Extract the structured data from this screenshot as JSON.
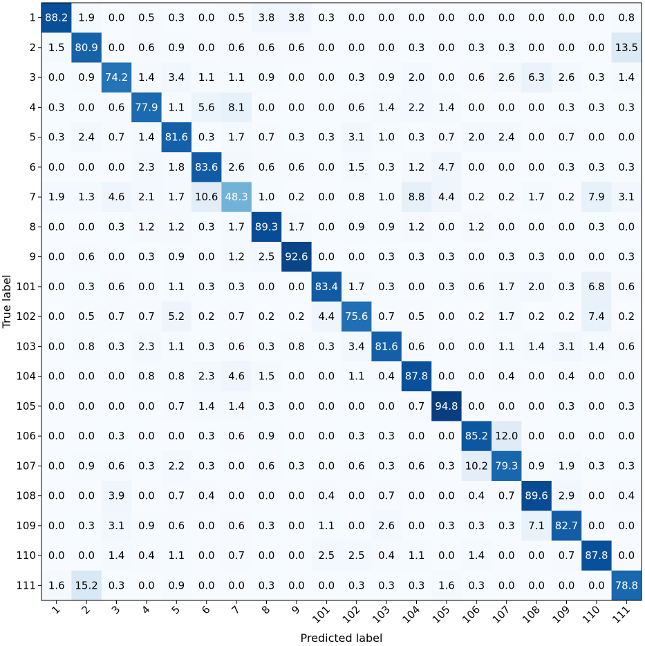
{
  "chart_data": {
    "type": "heatmap",
    "title": "",
    "xlabel": "Predicted label",
    "ylabel": "True label",
    "labels": [
      "1",
      "2",
      "3",
      "4",
      "5",
      "6",
      "7",
      "8",
      "9",
      "101",
      "102",
      "103",
      "104",
      "105",
      "106",
      "107",
      "108",
      "109",
      "110",
      "111"
    ],
    "colormap": "Blues",
    "value_range": [
      0,
      100
    ],
    "grid": false,
    "legend": "none",
    "matrix": [
      [
        88.2,
        1.9,
        0.0,
        0.5,
        0.3,
        0.0,
        0.5,
        3.8,
        3.8,
        0.3,
        0.0,
        0.0,
        0.0,
        0.0,
        0.0,
        0.0,
        0.0,
        0.0,
        0.0,
        0.8
      ],
      [
        1.5,
        80.9,
        0.0,
        0.6,
        0.9,
        0.0,
        0.6,
        0.6,
        0.6,
        0.0,
        0.0,
        0.0,
        0.3,
        0.0,
        0.3,
        0.3,
        0.0,
        0.0,
        0.0,
        13.5
      ],
      [
        0.0,
        0.9,
        74.2,
        1.4,
        3.4,
        1.1,
        1.1,
        0.9,
        0.0,
        0.0,
        0.3,
        0.9,
        2.0,
        0.0,
        0.6,
        2.6,
        6.3,
        2.6,
        0.3,
        1.4
      ],
      [
        0.3,
        0.0,
        0.6,
        77.9,
        1.1,
        5.6,
        8.1,
        0.0,
        0.0,
        0.0,
        0.6,
        1.4,
        2.2,
        1.4,
        0.0,
        0.0,
        0.0,
        0.3,
        0.3,
        0.3
      ],
      [
        0.3,
        2.4,
        0.7,
        1.4,
        81.6,
        0.3,
        1.7,
        0.7,
        0.3,
        0.3,
        3.1,
        1.0,
        0.3,
        0.7,
        2.0,
        2.4,
        0.0,
        0.7,
        0.0,
        0.0
      ],
      [
        0.0,
        0.0,
        0.0,
        2.3,
        1.8,
        83.6,
        2.6,
        0.6,
        0.6,
        0.0,
        1.5,
        0.3,
        1.2,
        4.7,
        0.0,
        0.0,
        0.0,
        0.3,
        0.3,
        0.3
      ],
      [
        1.9,
        1.3,
        4.6,
        2.1,
        1.7,
        10.6,
        48.3,
        1.0,
        0.2,
        0.0,
        0.8,
        1.0,
        8.8,
        4.4,
        0.2,
        0.2,
        1.7,
        0.2,
        7.9,
        3.1
      ],
      [
        0.0,
        0.0,
        0.3,
        1.2,
        1.2,
        0.3,
        1.7,
        89.3,
        1.7,
        0.0,
        0.9,
        0.9,
        1.2,
        0.0,
        1.2,
        0.0,
        0.0,
        0.0,
        0.3,
        0.0
      ],
      [
        0.0,
        0.6,
        0.0,
        0.3,
        0.9,
        0.0,
        1.2,
        2.5,
        92.6,
        0.0,
        0.0,
        0.3,
        0.3,
        0.3,
        0.0,
        0.3,
        0.3,
        0.0,
        0.0,
        0.3
      ],
      [
        0.0,
        0.3,
        0.6,
        0.0,
        1.1,
        0.3,
        0.3,
        0.0,
        0.0,
        83.4,
        1.7,
        0.3,
        0.0,
        0.3,
        0.6,
        1.7,
        2.0,
        0.3,
        6.8,
        0.6
      ],
      [
        0.0,
        0.5,
        0.7,
        0.7,
        5.2,
        0.2,
        0.7,
        0.2,
        0.2,
        4.4,
        75.6,
        0.7,
        0.5,
        0.0,
        0.2,
        1.7,
        0.2,
        0.2,
        7.4,
        0.2
      ],
      [
        0.0,
        0.8,
        0.3,
        2.3,
        1.1,
        0.3,
        0.6,
        0.3,
        0.8,
        0.3,
        3.4,
        81.6,
        0.6,
        0.0,
        0.0,
        1.1,
        1.4,
        3.1,
        1.4,
        0.6
      ],
      [
        0.0,
        0.0,
        0.0,
        0.8,
        0.8,
        2.3,
        4.6,
        1.5,
        0.0,
        0.0,
        1.1,
        0.4,
        87.8,
        0.0,
        0.0,
        0.4,
        0.0,
        0.4,
        0.0,
        0.0
      ],
      [
        0.0,
        0.0,
        0.0,
        0.0,
        0.7,
        1.4,
        1.4,
        0.3,
        0.0,
        0.0,
        0.0,
        0.0,
        0.7,
        94.8,
        0.0,
        0.0,
        0.0,
        0.3,
        0.0,
        0.3
      ],
      [
        0.0,
        0.0,
        0.3,
        0.0,
        0.0,
        0.3,
        0.6,
        0.9,
        0.0,
        0.0,
        0.3,
        0.3,
        0.0,
        0.0,
        85.2,
        12.0,
        0.0,
        0.0,
        0.0,
        0.0
      ],
      [
        0.0,
        0.9,
        0.6,
        0.3,
        2.2,
        0.3,
        0.0,
        0.6,
        0.3,
        0.0,
        0.6,
        0.3,
        0.6,
        0.3,
        10.2,
        79.3,
        0.9,
        1.9,
        0.3,
        0.3
      ],
      [
        0.0,
        0.0,
        3.9,
        0.0,
        0.7,
        0.4,
        0.0,
        0.0,
        0.0,
        0.4,
        0.0,
        0.7,
        0.0,
        0.0,
        0.4,
        0.7,
        89.6,
        2.9,
        0.0,
        0.4
      ],
      [
        0.0,
        0.3,
        3.1,
        0.9,
        0.6,
        0.0,
        0.6,
        0.3,
        0.0,
        1.1,
        0.0,
        2.6,
        0.0,
        0.3,
        0.3,
        0.3,
        7.1,
        82.7,
        0.0,
        0.0
      ],
      [
        0.0,
        0.0,
        1.4,
        0.4,
        1.1,
        0.0,
        0.7,
        0.0,
        0.0,
        2.5,
        2.5,
        0.4,
        1.1,
        0.0,
        1.4,
        0.0,
        0.0,
        0.7,
        87.8,
        0.0
      ],
      [
        1.6,
        15.2,
        0.3,
        0.0,
        0.9,
        0.0,
        0.0,
        0.3,
        0.0,
        0.0,
        0.3,
        0.3,
        0.3,
        1.6,
        0.3,
        0.0,
        0.0,
        0.0,
        0.0,
        78.8
      ]
    ]
  }
}
